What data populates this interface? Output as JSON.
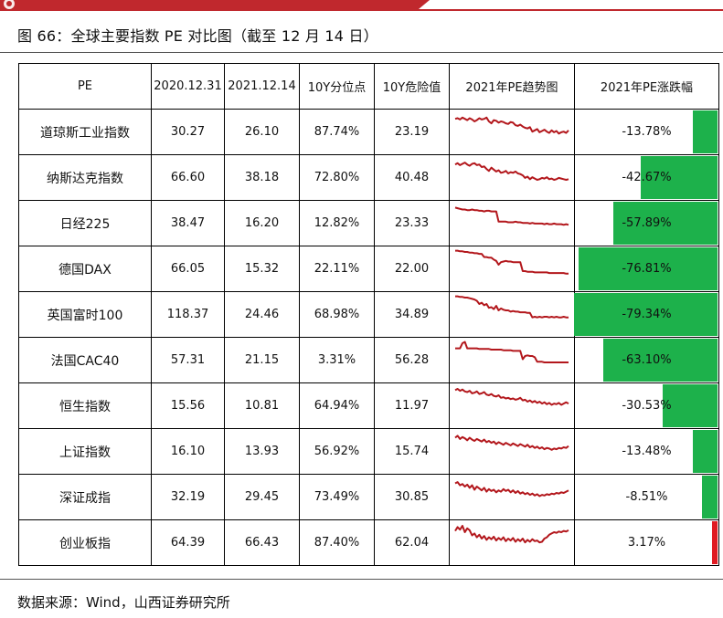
{
  "header": {
    "title": "图 66：全球主要指数 PE 对比图（截至 12 月 14 日）"
  },
  "colors": {
    "brand_red": "#c0282d",
    "trend_line": "#b3171c",
    "bar_green": "#1db14b",
    "bar_red": "#e01b22"
  },
  "table": {
    "columns": [
      "PE",
      "2020.12.31",
      "2021.12.14",
      "10Y分位点",
      "10Y危险值",
      "2021年PE趋势图",
      "2021年PE涨跌幅"
    ],
    "rows": [
      {
        "name": "道琼斯工业指数",
        "pe_2020": "30.27",
        "pe_2021": "26.10",
        "pct_10y": "87.74%",
        "danger_10y": "23.19",
        "change": "-13.78%",
        "change_value": -13.78,
        "trend": [
          54,
          55,
          53,
          56,
          54,
          52,
          55,
          53,
          50,
          52,
          55,
          53,
          54,
          56,
          50,
          47,
          52,
          51,
          48,
          50,
          49,
          47,
          46,
          49,
          48,
          44,
          43,
          45,
          42,
          40,
          39,
          41,
          34,
          36,
          38,
          33,
          35,
          37,
          34,
          32,
          36,
          33,
          35,
          31,
          33,
          34,
          32,
          36
        ]
      },
      {
        "name": "纳斯达克指数",
        "pe_2020": "66.60",
        "pe_2021": "38.18",
        "pct_10y": "72.80%",
        "danger_10y": "40.48",
        "change": "-42.67%",
        "change_value": -42.67,
        "trend": [
          54,
          56,
          53,
          55,
          57,
          54,
          52,
          55,
          56,
          53,
          54,
          50,
          51,
          47,
          44,
          49,
          46,
          43,
          45,
          41,
          42,
          44,
          40,
          42,
          41,
          43,
          40,
          39,
          37,
          33,
          35,
          31,
          34,
          32,
          30,
          31,
          33,
          32,
          34,
          31,
          32,
          30,
          31,
          33,
          32,
          31,
          30,
          31
        ]
      },
      {
        "name": "日经225",
        "pe_2020": "38.47",
        "pe_2021": "16.20",
        "pct_10y": "12.82%",
        "danger_10y": "23.33",
        "change": "-57.89%",
        "change_value": -57.89,
        "trend": [
          58,
          57,
          56,
          55,
          55,
          54,
          54,
          55,
          54,
          54,
          53,
          53,
          52,
          53,
          53,
          52,
          52,
          52,
          36,
          36,
          36,
          36,
          35,
          35,
          35,
          36,
          35,
          35,
          34,
          34,
          34,
          33,
          34,
          33,
          33,
          33,
          33,
          32,
          33,
          32,
          32,
          33,
          32,
          32,
          32,
          31,
          32,
          31
        ]
      },
      {
        "name": "德国DAX",
        "pe_2020": "66.05",
        "pe_2021": "15.32",
        "pct_10y": "22.11%",
        "danger_10y": "22.00",
        "change": "-76.81%",
        "change_value": -76.81,
        "trend": [
          62,
          62,
          61,
          61,
          60,
          60,
          59,
          59,
          58,
          58,
          57,
          57,
          52,
          52,
          51,
          51,
          48,
          46,
          40,
          44,
          45,
          46,
          45,
          45,
          44,
          44,
          44,
          44,
          30,
          30,
          29,
          29,
          29,
          28,
          28,
          28,
          28,
          28,
          28,
          27,
          27,
          27,
          27,
          27,
          27,
          27,
          26,
          26
        ]
      },
      {
        "name": "英国富时100",
        "pe_2020": "118.37",
        "pe_2021": "24.46",
        "pct_10y": "68.98%",
        "danger_10y": "34.89",
        "change": "-79.34%",
        "change_value": -79.34,
        "trend": [
          62,
          62,
          61,
          61,
          60,
          60,
          59,
          58,
          57,
          55,
          50,
          52,
          48,
          50,
          44,
          45,
          42,
          47,
          40,
          43,
          41,
          40,
          40,
          38,
          39,
          38,
          38,
          37,
          37,
          37,
          36,
          36,
          29,
          30,
          29,
          30,
          29,
          30,
          30,
          29,
          30,
          29,
          30,
          29,
          29,
          30,
          29,
          29
        ]
      },
      {
        "name": "法国CAC40",
        "pe_2020": "57.31",
        "pe_2021": "21.15",
        "pct_10y": "3.31%",
        "danger_10y": "56.28",
        "change": "-63.10%",
        "change_value": -63.1,
        "trend": [
          52,
          52,
          52,
          60,
          62,
          52,
          52,
          52,
          52,
          52,
          51,
          51,
          51,
          51,
          51,
          50,
          50,
          50,
          50,
          50,
          49,
          49,
          49,
          49,
          48,
          48,
          48,
          48,
          35,
          40,
          41,
          40,
          40,
          38,
          31,
          31,
          31,
          30,
          30,
          30,
          30,
          30,
          30,
          30,
          30,
          30,
          30,
          30
        ]
      },
      {
        "name": "恒生指数",
        "pe_2020": "15.56",
        "pe_2021": "10.81",
        "pct_10y": "64.94%",
        "danger_10y": "11.97",
        "change": "-30.53%",
        "change_value": -30.53,
        "trend": [
          58,
          60,
          57,
          59,
          56,
          55,
          57,
          53,
          54,
          56,
          52,
          53,
          55,
          51,
          50,
          52,
          49,
          48,
          50,
          46,
          47,
          45,
          46,
          44,
          45,
          43,
          44,
          46,
          42,
          43,
          40,
          42,
          39,
          41,
          38,
          40,
          37,
          39,
          36,
          38,
          35,
          37,
          36,
          38,
          35,
          37,
          39,
          37
        ]
      },
      {
        "name": "上证指数",
        "pe_2020": "16.10",
        "pe_2021": "13.93",
        "pct_10y": "56.92%",
        "danger_10y": "15.74",
        "change": "-13.48%",
        "change_value": -13.48,
        "trend": [
          55,
          58,
          53,
          56,
          54,
          51,
          55,
          52,
          50,
          53,
          51,
          49,
          52,
          48,
          50,
          47,
          49,
          45,
          48,
          46,
          44,
          47,
          45,
          43,
          46,
          44,
          42,
          45,
          43,
          41,
          44,
          40,
          42,
          39,
          41,
          38,
          40,
          37,
          39,
          38,
          36,
          38,
          37,
          39,
          38,
          40,
          39,
          42
        ]
      },
      {
        "name": "深证成指",
        "pe_2020": "32.19",
        "pe_2021": "29.45",
        "pct_10y": "73.49%",
        "danger_10y": "30.85",
        "change": "-8.51%",
        "change_value": -8.51,
        "trend": [
          55,
          57,
          52,
          54,
          50,
          53,
          48,
          52,
          45,
          50,
          47,
          44,
          48,
          42,
          46,
          43,
          45,
          41,
          44,
          42,
          46,
          43,
          45,
          41,
          44,
          40,
          43,
          39,
          41,
          38,
          40,
          37,
          39,
          36,
          38,
          35,
          37,
          36,
          38,
          37,
          39,
          38,
          40,
          39,
          41,
          40,
          42,
          44
        ]
      },
      {
        "name": "创业板指",
        "pe_2020": "64.39",
        "pe_2021": "66.43",
        "pct_10y": "87.40%",
        "danger_10y": "62.04",
        "change": "3.17%",
        "change_value": 3.17,
        "trend": [
          52,
          58,
          54,
          60,
          50,
          56,
          53,
          45,
          48,
          42,
          46,
          40,
          44,
          38,
          42,
          39,
          43,
          37,
          41,
          38,
          42,
          36,
          40,
          37,
          41,
          35,
          39,
          36,
          40,
          34,
          38,
          35,
          39,
          36,
          37,
          34,
          35,
          40,
          42,
          46,
          48,
          50,
          49,
          51,
          50,
          52,
          51,
          53
        ]
      }
    ]
  },
  "footer": {
    "source": "数据来源：Wind，山西证券研究所"
  }
}
